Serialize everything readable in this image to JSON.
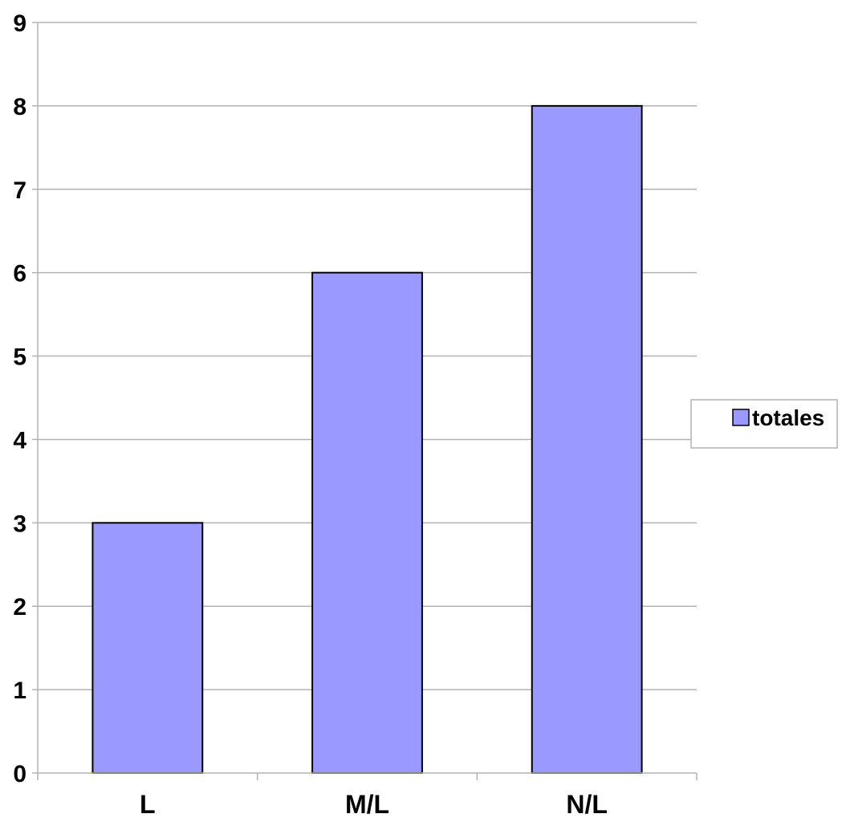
{
  "chart_data": {
    "type": "bar",
    "categories": [
      "L",
      "M/L",
      "N/L"
    ],
    "series": [
      {
        "name": "totales",
        "values": [
          3,
          6,
          8
        ],
        "color": "#9999ff"
      }
    ],
    "ylim": [
      0,
      9
    ],
    "yticks": [
      0,
      1,
      2,
      3,
      4,
      5,
      6,
      7,
      8,
      9
    ],
    "grid": true,
    "legend": "right",
    "title": "",
    "xlabel": "",
    "ylabel": ""
  }
}
